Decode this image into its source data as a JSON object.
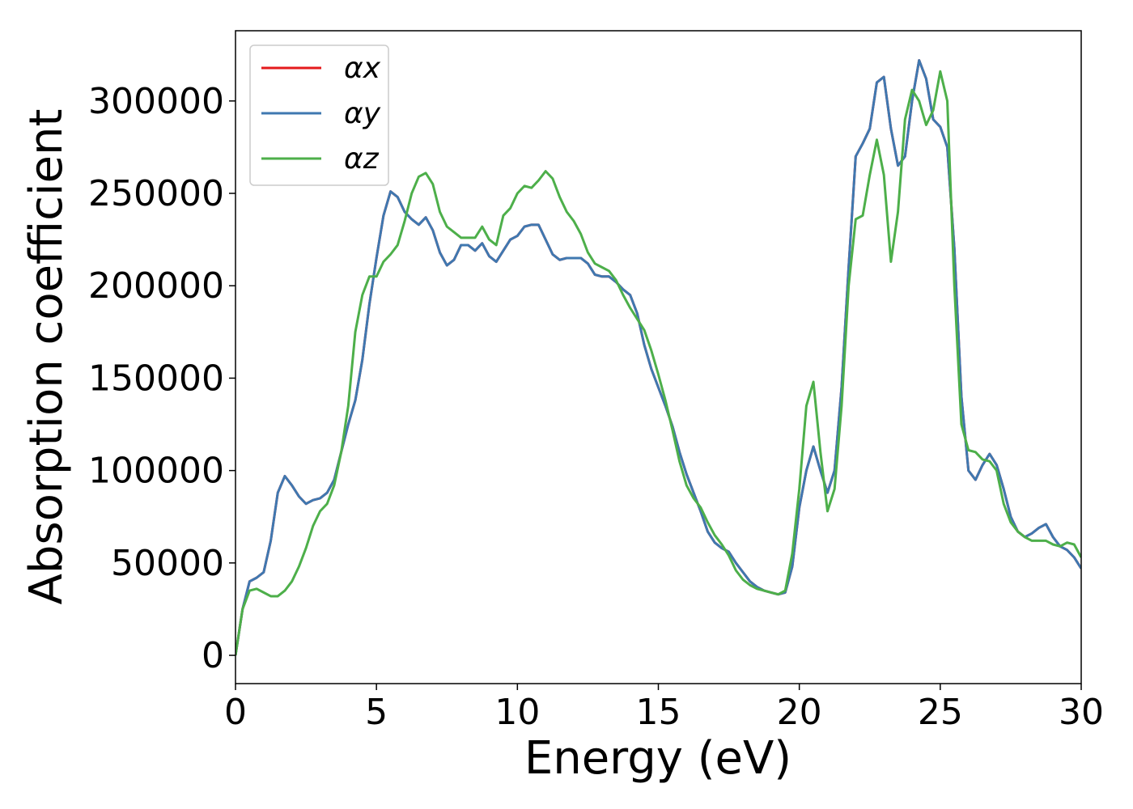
{
  "chart_data": {
    "type": "line",
    "xlabel": "Energy (eV)",
    "ylabel": "Absorption coefficient",
    "xlim": [
      0,
      30
    ],
    "xticks": [
      0,
      5,
      10,
      15,
      20,
      25,
      30
    ],
    "ylim": [
      -15300,
      338000
    ],
    "yticks": [
      0,
      50000,
      100000,
      150000,
      200000,
      250000,
      300000
    ],
    "legend": "upper left",
    "grid": false,
    "x": [
      0,
      0.25,
      0.5,
      0.75,
      1,
      1.25,
      1.5,
      1.75,
      2,
      2.25,
      2.5,
      2.75,
      3,
      3.25,
      3.5,
      3.75,
      4,
      4.25,
      4.5,
      4.75,
      5,
      5.25,
      5.5,
      5.75,
      6,
      6.25,
      6.5,
      6.75,
      7,
      7.25,
      7.5,
      7.75,
      8,
      8.25,
      8.5,
      8.75,
      9,
      9.25,
      9.5,
      9.75,
      10,
      10.25,
      10.5,
      10.75,
      11,
      11.25,
      11.5,
      11.75,
      12,
      12.25,
      12.5,
      12.75,
      13,
      13.25,
      13.5,
      13.75,
      14,
      14.25,
      14.5,
      14.75,
      15,
      15.25,
      15.5,
      15.75,
      16,
      16.25,
      16.5,
      16.75,
      17,
      17.25,
      17.5,
      17.75,
      18,
      18.25,
      18.5,
      18.75,
      19,
      19.25,
      19.5,
      19.75,
      20,
      20.25,
      20.5,
      20.75,
      21,
      21.25,
      21.5,
      21.75,
      22,
      22.25,
      22.5,
      22.75,
      23,
      23.25,
      23.5,
      23.75,
      24,
      24.25,
      24.5,
      24.75,
      25,
      25.25,
      25.5,
      25.75,
      26,
      26.25,
      26.5,
      26.75,
      27,
      27.25,
      27.5,
      27.75,
      28,
      28.25,
      28.5,
      28.75,
      29,
      29.25,
      29.5,
      29.75,
      30
    ],
    "series": [
      {
        "name": "αx",
        "color": "#e41a1c",
        "values": [
          0,
          25000,
          40000,
          42000,
          45000,
          62000,
          88000,
          97000,
          92000,
          86000,
          82000,
          84000,
          85000,
          88000,
          95000,
          110000,
          125000,
          138000,
          160000,
          190000,
          215000,
          238000,
          251000,
          248000,
          240000,
          236000,
          233000,
          237000,
          230000,
          218000,
          211000,
          214000,
          222000,
          222000,
          219000,
          223000,
          216000,
          213000,
          219000,
          225000,
          227000,
          232000,
          233000,
          233000,
          225000,
          217000,
          214000,
          215000,
          215000,
          215000,
          212000,
          206000,
          205000,
          205000,
          202000,
          198000,
          195000,
          185000,
          168000,
          155000,
          145000,
          135000,
          124000,
          110000,
          98000,
          88000,
          78000,
          67000,
          61000,
          58000,
          56000,
          50000,
          45000,
          40000,
          37000,
          35000,
          34000,
          33000,
          34000,
          48000,
          80000,
          100000,
          113000,
          100000,
          88000,
          100000,
          145000,
          210000,
          270000,
          277000,
          285000,
          310000,
          313000,
          285000,
          265000,
          270000,
          300000,
          322000,
          312000,
          290000,
          286000,
          275000,
          220000,
          140000,
          100000,
          95000,
          103000,
          109000,
          103000,
          90000,
          75000,
          67000,
          64000,
          66000,
          69000,
          71000,
          64000,
          59000,
          57000,
          53000,
          47000
        ]
      },
      {
        "name": "αy",
        "color": "#3f78b0",
        "values": [
          0,
          25000,
          40000,
          42000,
          45000,
          62000,
          88000,
          97000,
          92000,
          86000,
          82000,
          84000,
          85000,
          88000,
          95000,
          110000,
          125000,
          138000,
          160000,
          190000,
          215000,
          238000,
          251000,
          248000,
          240000,
          236000,
          233000,
          237000,
          230000,
          218000,
          211000,
          214000,
          222000,
          222000,
          219000,
          223000,
          216000,
          213000,
          219000,
          225000,
          227000,
          232000,
          233000,
          233000,
          225000,
          217000,
          214000,
          215000,
          215000,
          215000,
          212000,
          206000,
          205000,
          205000,
          202000,
          198000,
          195000,
          185000,
          168000,
          155000,
          145000,
          135000,
          124000,
          110000,
          98000,
          88000,
          78000,
          67000,
          61000,
          58000,
          56000,
          50000,
          45000,
          40000,
          37000,
          35000,
          34000,
          33000,
          34000,
          48000,
          80000,
          100000,
          113000,
          100000,
          88000,
          100000,
          145000,
          210000,
          270000,
          277000,
          285000,
          310000,
          313000,
          285000,
          265000,
          270000,
          300000,
          322000,
          312000,
          290000,
          286000,
          275000,
          220000,
          140000,
          100000,
          95000,
          103000,
          109000,
          103000,
          90000,
          75000,
          67000,
          64000,
          66000,
          69000,
          71000,
          64000,
          59000,
          57000,
          53000,
          47000
        ]
      },
      {
        "name": "αz",
        "color": "#4daf4a",
        "values": [
          0,
          25000,
          35000,
          36000,
          34000,
          32000,
          32000,
          35000,
          40000,
          48000,
          58000,
          70000,
          78000,
          82000,
          92000,
          110000,
          135000,
          175000,
          195000,
          205000,
          205000,
          213000,
          217000,
          222000,
          235000,
          250000,
          259000,
          261000,
          255000,
          240000,
          232000,
          229000,
          226000,
          226000,
          226000,
          232000,
          225000,
          222000,
          238000,
          242000,
          250000,
          254000,
          253000,
          257000,
          262000,
          258000,
          248000,
          240000,
          235000,
          228000,
          218000,
          212000,
          210000,
          208000,
          203000,
          195000,
          188000,
          182000,
          176000,
          165000,
          152000,
          138000,
          122000,
          105000,
          92000,
          85000,
          80000,
          72000,
          65000,
          60000,
          54000,
          46000,
          41000,
          38000,
          36000,
          35000,
          34000,
          33000,
          35000,
          55000,
          90000,
          135000,
          148000,
          110000,
          78000,
          90000,
          135000,
          200000,
          236000,
          238000,
          260000,
          279000,
          260000,
          213000,
          240000,
          290000,
          306000,
          300000,
          287000,
          295000,
          316000,
          300000,
          200000,
          125000,
          111000,
          110000,
          106000,
          105000,
          100000,
          82000,
          72000,
          67000,
          64000,
          62000,
          62000,
          62000,
          60000,
          59000,
          61000,
          60000,
          53000
        ]
      }
    ]
  }
}
